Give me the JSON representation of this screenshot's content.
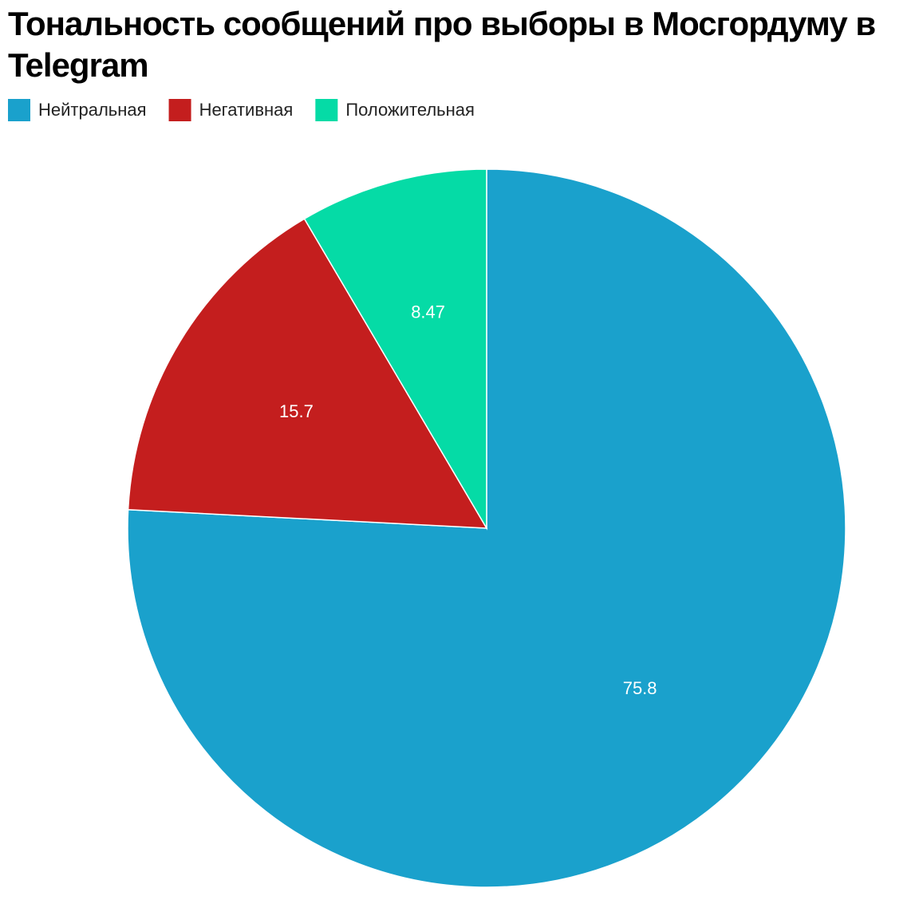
{
  "chart_data": {
    "type": "pie",
    "title": "Тональность сообщений про выборы в Мосгордуму в Telegram",
    "categories": [
      "Нейтральная",
      "Негативная",
      "Положительная"
    ],
    "values": [
      75.8,
      15.7,
      8.47
    ],
    "colors": [
      "#1aa1cc",
      "#c41e1e",
      "#05dba6"
    ],
    "legend": "top-left"
  }
}
